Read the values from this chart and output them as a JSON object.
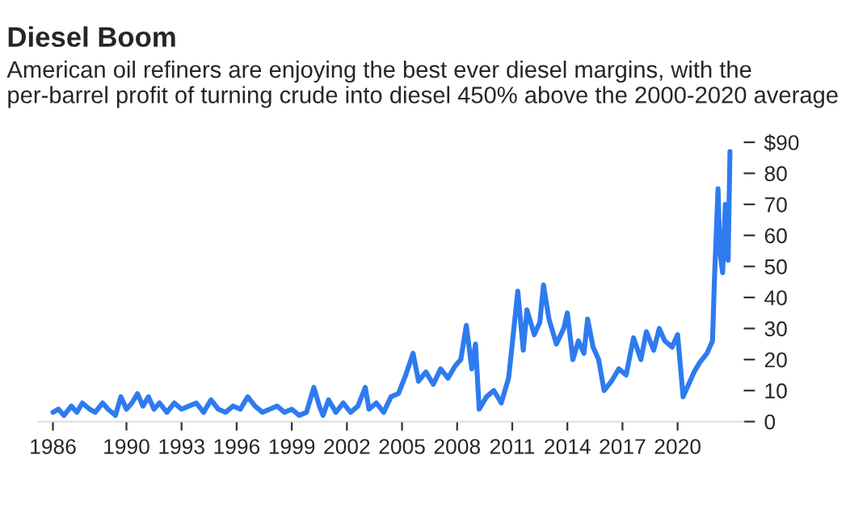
{
  "chart_data": {
    "type": "line",
    "title": "Diesel Boom",
    "subtitle": "American oil refiners are enjoying the best ever diesel margins, with the per-barrel profit of turning crude into diesel 450% above the 2000-2020 average",
    "x": [
      1986.0,
      1986.3,
      1986.6,
      1987.0,
      1987.3,
      1987.6,
      1988.0,
      1988.3,
      1988.7,
      1989.0,
      1989.4,
      1989.7,
      1990.0,
      1990.3,
      1990.6,
      1990.9,
      1991.2,
      1991.5,
      1991.8,
      1992.2,
      1992.6,
      1993.0,
      1993.4,
      1993.8,
      1994.2,
      1994.6,
      1995.0,
      1995.4,
      1995.8,
      1996.2,
      1996.6,
      1997.0,
      1997.4,
      1997.8,
      1998.2,
      1998.6,
      1999.0,
      1999.4,
      1999.8,
      2000.2,
      2000.5,
      2000.7,
      2001.0,
      2001.4,
      2001.8,
      2002.2,
      2002.6,
      2003.0,
      2003.2,
      2003.6,
      2004.0,
      2004.4,
      2004.8,
      2005.2,
      2005.6,
      2005.9,
      2006.3,
      2006.7,
      2007.1,
      2007.5,
      2007.9,
      2008.2,
      2008.5,
      2008.8,
      2009.0,
      2009.2,
      2009.6,
      2010.0,
      2010.4,
      2010.8,
      2011.0,
      2011.3,
      2011.6,
      2011.8,
      2012.2,
      2012.5,
      2012.7,
      2013.0,
      2013.4,
      2013.8,
      2014.0,
      2014.3,
      2014.6,
      2014.9,
      2015.1,
      2015.4,
      2015.7,
      2016.0,
      2016.4,
      2016.8,
      2017.2,
      2017.6,
      2018.0,
      2018.3,
      2018.7,
      2019.0,
      2019.3,
      2019.7,
      2020.0,
      2020.3,
      2020.6,
      2020.9,
      2021.2,
      2021.6,
      2021.9,
      2022.0,
      2022.2,
      2022.3,
      2022.45,
      2022.6,
      2022.75,
      2022.85
    ],
    "values": [
      3,
      4,
      2,
      5,
      3,
      6,
      4,
      3,
      6,
      4,
      2,
      8,
      4,
      6,
      9,
      5,
      8,
      4,
      6,
      3,
      6,
      4,
      5,
      6,
      3,
      7,
      4,
      3,
      5,
      4,
      8,
      5,
      3,
      4,
      5,
      3,
      4,
      2,
      3,
      11,
      5,
      2,
      7,
      3,
      6,
      3,
      5,
      11,
      4,
      6,
      3,
      8,
      9,
      15,
      22,
      13,
      16,
      12,
      17,
      14,
      18,
      20,
      31,
      17,
      25,
      4,
      8,
      10,
      6,
      14,
      25,
      42,
      23,
      36,
      28,
      32,
      44,
      33,
      25,
      30,
      35,
      20,
      26,
      22,
      33,
      24,
      20,
      10,
      13,
      17,
      15,
      27,
      20,
      29,
      23,
      30,
      26,
      24,
      28,
      8,
      12,
      16,
      19,
      22,
      26,
      45,
      75,
      55,
      48,
      70,
      52,
      87
    ],
    "color": "#2e7bf0",
    "line_style": "solid",
    "marker": "none",
    "xlim": [
      1985.2,
      2023.6
    ],
    "xticks": [
      1986,
      1990,
      1993,
      1996,
      1999,
      2002,
      2005,
      2008,
      2011,
      2014,
      2017,
      2020
    ],
    "ylim": [
      0,
      90
    ],
    "yticks": [
      0,
      10,
      20,
      30,
      40,
      50,
      60,
      70,
      80,
      {
        "value": 90,
        "label": "$90"
      }
    ],
    "grid": false
  }
}
